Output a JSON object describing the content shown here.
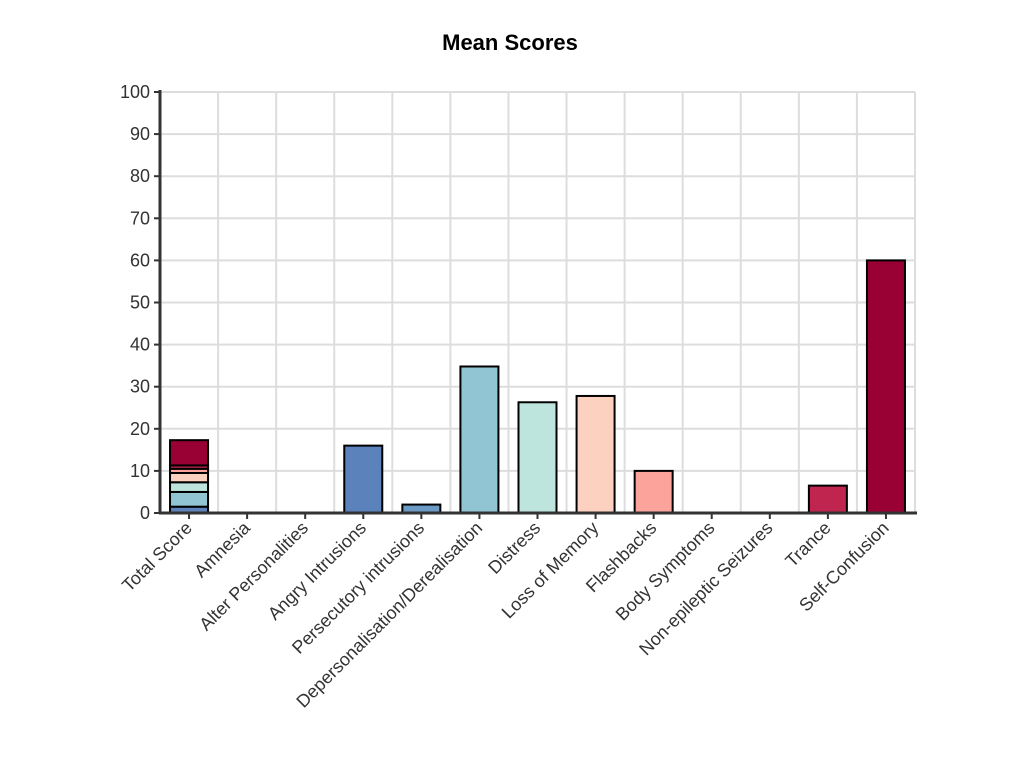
{
  "chart_data": {
    "type": "bar",
    "title": "Mean Scores",
    "xlabel": "",
    "ylabel": "",
    "ylim": [
      0,
      100
    ],
    "yticks": [
      0,
      10,
      20,
      30,
      40,
      50,
      60,
      70,
      80,
      90,
      100
    ],
    "grid": true,
    "categories": [
      "Total Score",
      "Amnesia",
      "Alter Personalities",
      "Angry Intrusions",
      "Persecutory intrusions",
      "Depersonalisation/Derealisation",
      "Distress",
      "Loss of Memory",
      "Flashbacks",
      "Body Symptoms",
      "Non-epileptic Seizures",
      "Trance",
      "Self-Confusion"
    ],
    "values": [
      17.3,
      0,
      0,
      16,
      2,
      34.8,
      26.3,
      27.8,
      10,
      0,
      0,
      6.5,
      60
    ],
    "bar_colors": [
      null,
      "#4575b4",
      "#4575b4",
      "#5b82bb",
      "#6b9ac4",
      "#92c5d3",
      "#bde5de",
      "#fdd1bf",
      "#fca39c",
      "#f17e7a",
      "#e0505e",
      "#c0254f",
      "#990033"
    ],
    "total_score_segments": [
      {
        "value": 1.5,
        "color": "#5b82bb"
      },
      {
        "value": 3.5,
        "color": "#92c5d3"
      },
      {
        "value": 2.3,
        "color": "#bde5de"
      },
      {
        "value": 2.2,
        "color": "#fdd1bf"
      },
      {
        "value": 1.0,
        "color": "#fca39c"
      },
      {
        "value": 0.8,
        "color": "#c0254f"
      },
      {
        "value": 6.0,
        "color": "#990033"
      }
    ]
  }
}
